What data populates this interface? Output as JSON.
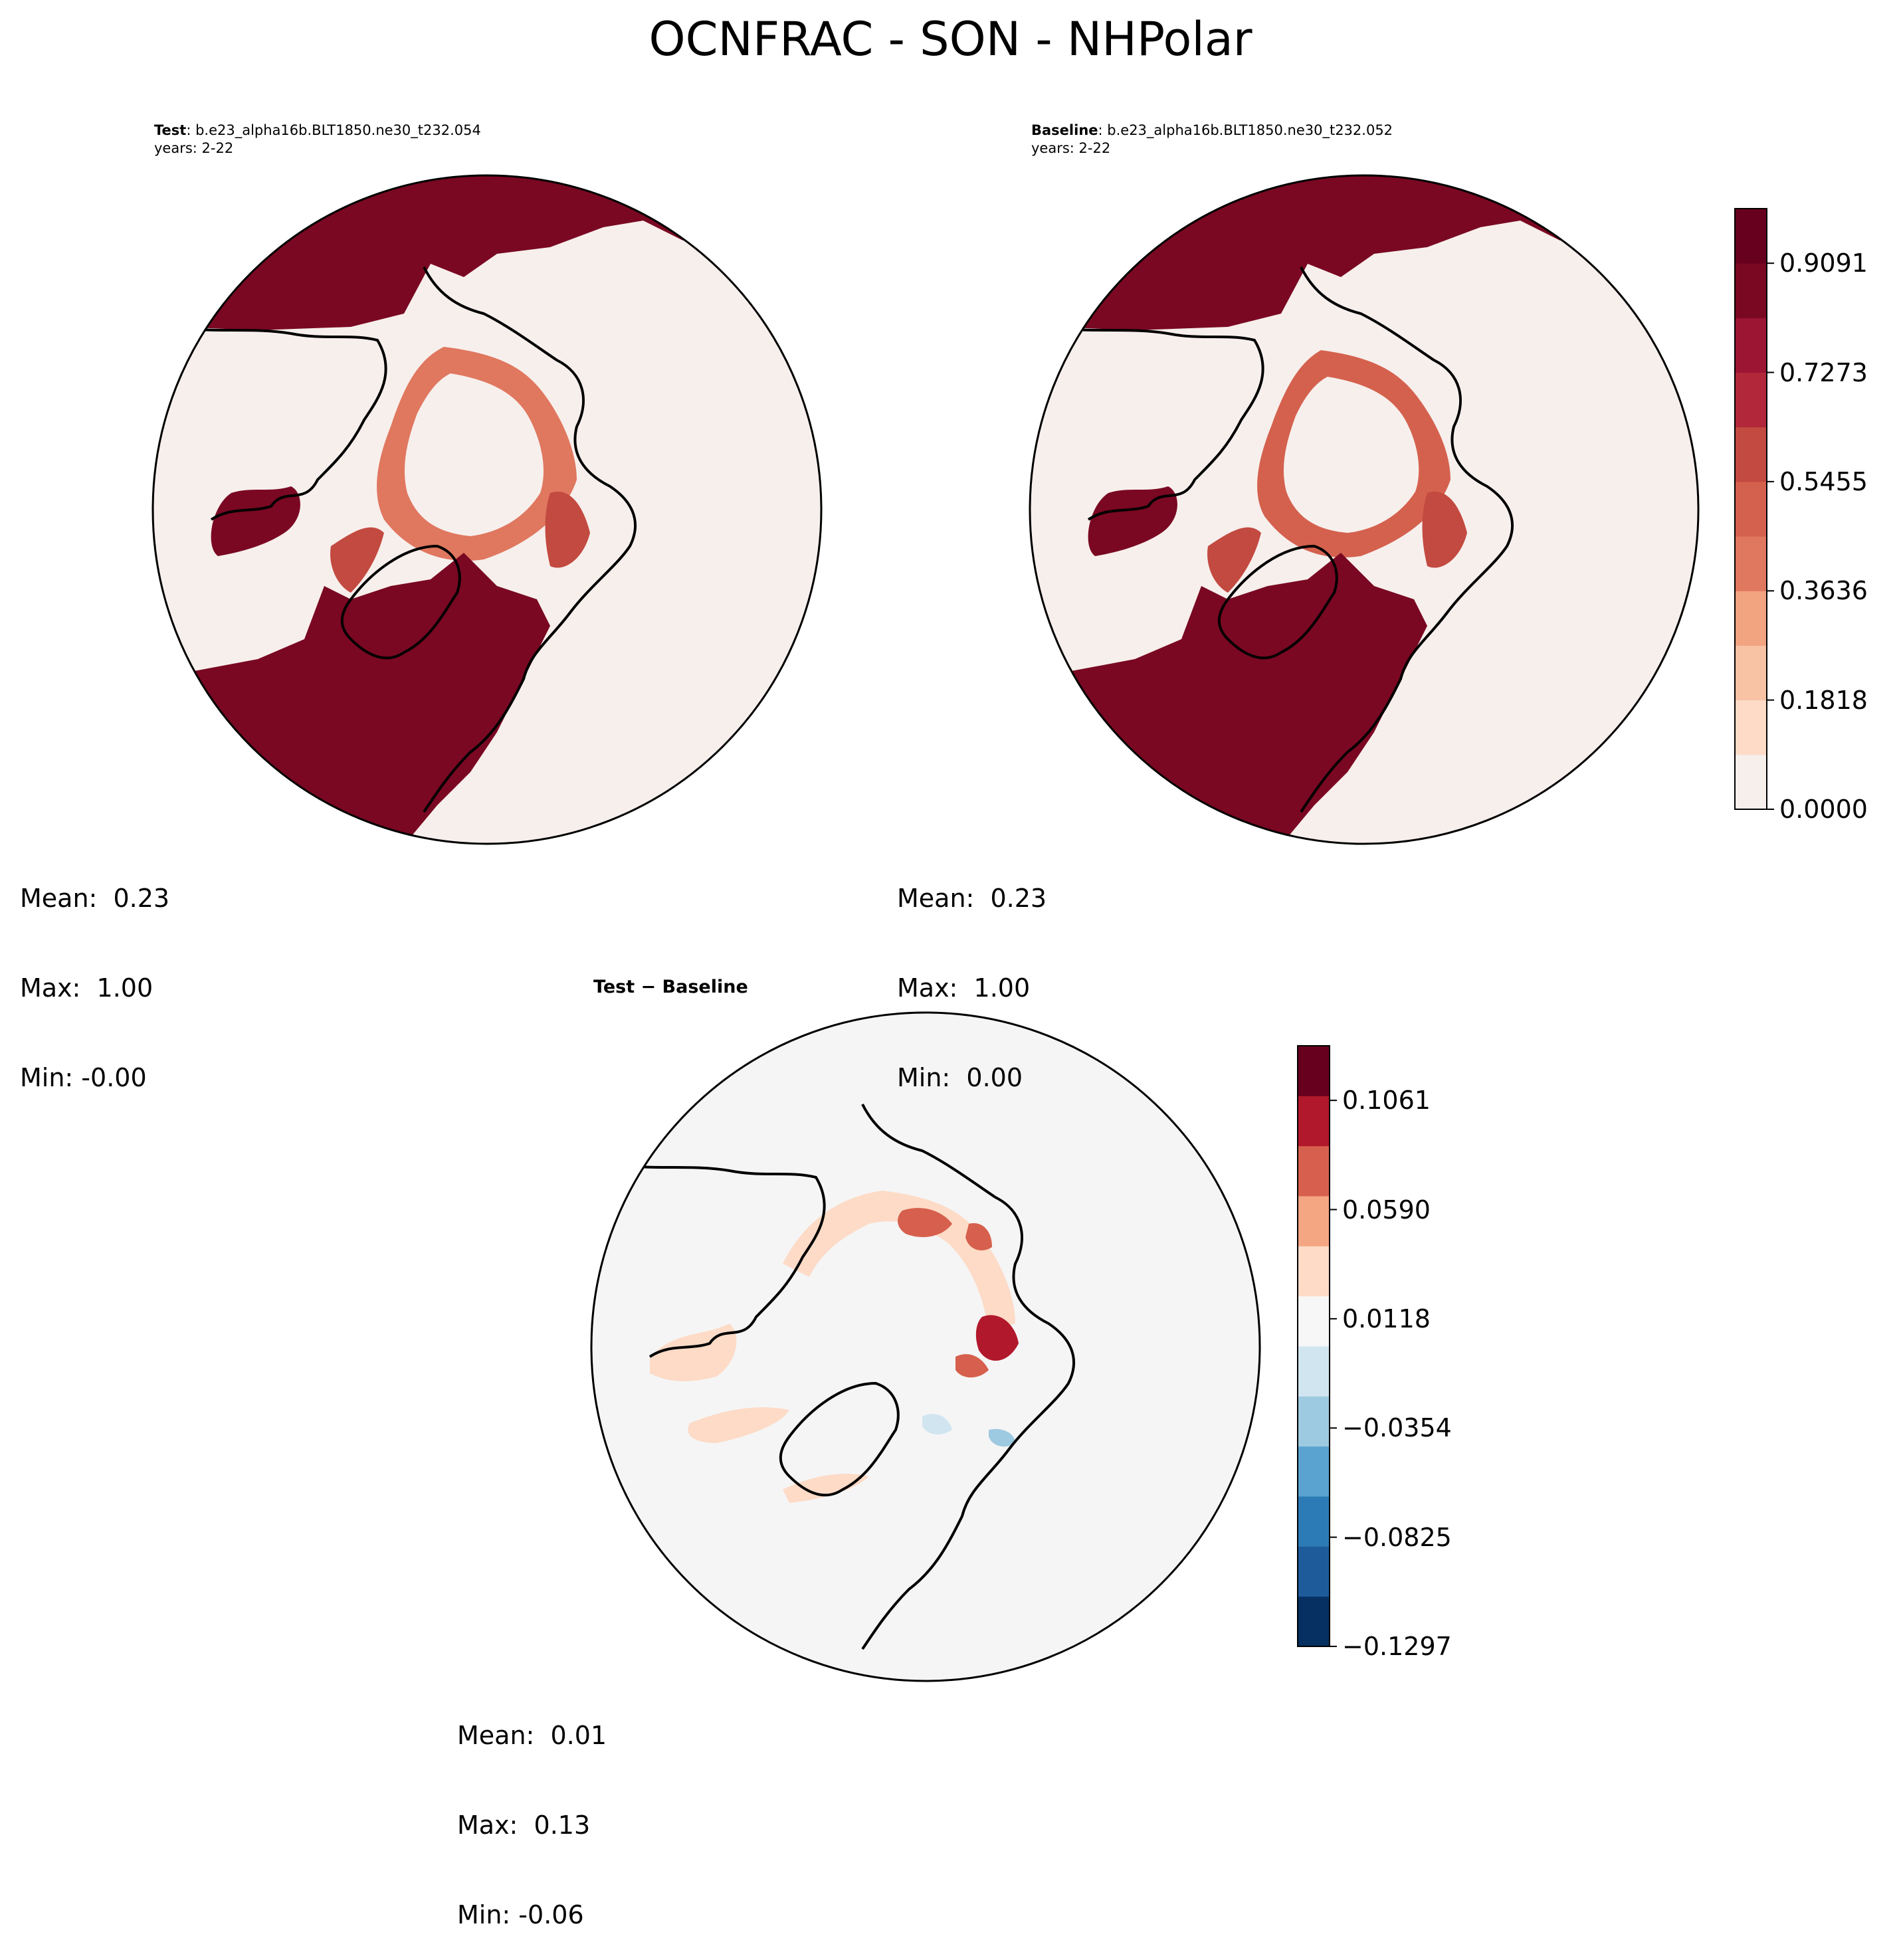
{
  "title": "OCNFRAC - SON - NHPolar",
  "colors": {
    "seq": [
      "#f7efec",
      "#fddbc7",
      "#f8c2a5",
      "#f2a37f",
      "#e0775f",
      "#d4614e",
      "#c34a40",
      "#b2283a",
      "#9c1533",
      "#7a0822",
      "#67001f"
    ],
    "div": [
      "#053061",
      "#1e5b9b",
      "#2c7bb6",
      "#5aa2cf",
      "#9ecae1",
      "#d1e5f0",
      "#f7f7f7",
      "#fddbc7",
      "#f4a582",
      "#d6604d",
      "#b2182b",
      "#67001f"
    ],
    "land": "#f7efec",
    "diff_bg": "#f5f5f5"
  },
  "panels": {
    "test": {
      "label_bold": "Test",
      "case": ": b.e23_alpha16b.BLT1850.ne30_t232.054",
      "years": "years: 2-22",
      "mean": "Mean:  0.23",
      "max": "Max:  1.00",
      "min": "Min: -0.00"
    },
    "baseline": {
      "label_bold": "Baseline",
      "case": ": b.e23_alpha16b.BLT1850.ne30_t232.052",
      "years": "years: 2-22",
      "mean": "Mean:  0.23",
      "max": "Max:  1.00",
      "min": "Min:  0.00"
    },
    "diff": {
      "title": "Test − Baseline",
      "mean": "Mean:  0.01",
      "max": "Max:  0.13",
      "min": "Min: -0.06"
    }
  },
  "chart_data": [
    {
      "type": "heatmap",
      "title": "Test",
      "projection": "north-polar-stereographic",
      "stats": {
        "mean": 0.23,
        "max": 1.0,
        "min": -0.0
      }
    },
    {
      "type": "heatmap",
      "title": "Baseline",
      "projection": "north-polar-stereographic",
      "stats": {
        "mean": 0.23,
        "max": 1.0,
        "min": 0.0
      },
      "colorbar": {
        "ticks": [
          "0.9091",
          "0.7273",
          "0.5455",
          "0.3636",
          "0.1818",
          "0.0000"
        ],
        "range": [
          0.0,
          1.0
        ],
        "levels": 11,
        "colormap": "Reds"
      }
    },
    {
      "type": "heatmap",
      "title": "Test − Baseline",
      "projection": "north-polar-stereographic",
      "stats": {
        "mean": 0.01,
        "max": 0.13,
        "min": -0.06
      },
      "colorbar": {
        "ticks": [
          "0.1061",
          "0.0590",
          "0.0118",
          "−0.0354",
          "−0.0825",
          "−0.1297"
        ],
        "range": [
          -0.1297,
          0.1297
        ],
        "levels": 11,
        "colormap": "RdBu_r"
      }
    }
  ]
}
